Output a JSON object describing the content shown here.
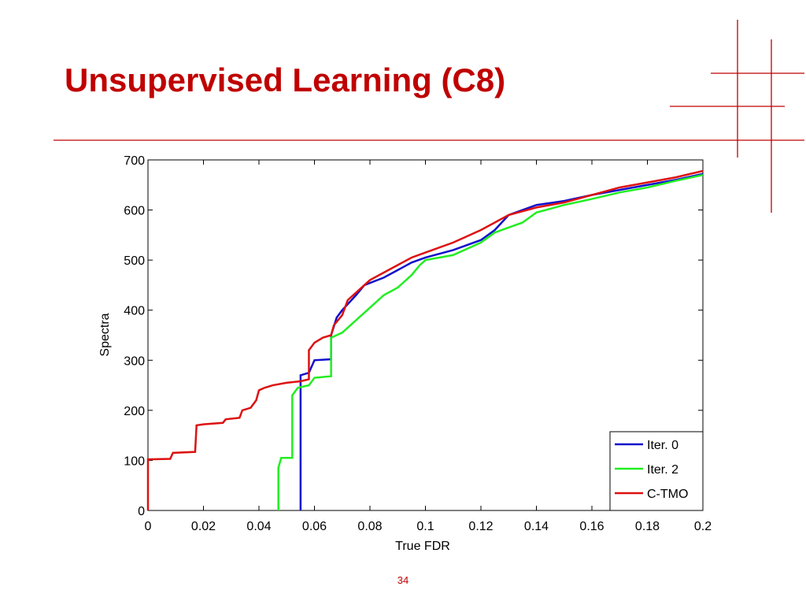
{
  "slide_title": "Unsupervised Learning (C8)",
  "page_number": "34",
  "chart_data": {
    "type": "line",
    "xlabel": "True FDR",
    "ylabel": "Spectra",
    "xlim": [
      0,
      0.2
    ],
    "ylim": [
      0,
      700
    ],
    "xticks": [
      0,
      0.02,
      0.04,
      0.06,
      0.08,
      0.1,
      0.12,
      0.14,
      0.16,
      0.18,
      0.2
    ],
    "yticks": [
      0,
      100,
      200,
      300,
      400,
      500,
      600,
      700
    ],
    "legend": "lower right",
    "series": [
      {
        "name": "Iter. 0",
        "color": "#1010cc",
        "x": [
          0.055,
          0.055,
          0.058,
          0.06,
          0.066,
          0.066,
          0.068,
          0.07,
          0.075,
          0.078,
          0.085,
          0.09,
          0.095,
          0.1,
          0.11,
          0.12,
          0.125,
          0.13,
          0.14,
          0.15,
          0.16,
          0.17,
          0.18,
          0.19,
          0.2
        ],
        "values": [
          0,
          270,
          275,
          300,
          302,
          350,
          385,
          400,
          430,
          450,
          465,
          480,
          495,
          505,
          520,
          540,
          560,
          590,
          610,
          618,
          630,
          640,
          650,
          660,
          672
        ]
      },
      {
        "name": "Iter. 2",
        "color": "#22ee22",
        "x": [
          0.047,
          0.047,
          0.048,
          0.052,
          0.052,
          0.054,
          0.058,
          0.06,
          0.066,
          0.066,
          0.07,
          0.075,
          0.08,
          0.085,
          0.09,
          0.095,
          0.098,
          0.1,
          0.11,
          0.12,
          0.125,
          0.13,
          0.135,
          0.14,
          0.15,
          0.16,
          0.17,
          0.18,
          0.19,
          0.2
        ],
        "values": [
          0,
          85,
          105,
          105,
          230,
          245,
          250,
          265,
          268,
          345,
          355,
          380,
          405,
          430,
          445,
          470,
          490,
          500,
          510,
          535,
          555,
          565,
          575,
          595,
          610,
          622,
          635,
          645,
          658,
          670
        ]
      },
      {
        "name": "C-TMO",
        "color": "#dd1111",
        "x": [
          0,
          0,
          0.008,
          0.009,
          0.017,
          0.0175,
          0.02,
          0.027,
          0.028,
          0.033,
          0.034,
          0.037,
          0.039,
          0.04,
          0.042,
          0.045,
          0.05,
          0.055,
          0.058,
          0.058,
          0.06,
          0.063,
          0.066,
          0.067,
          0.07,
          0.072,
          0.075,
          0.08,
          0.085,
          0.09,
          0.095,
          0.1,
          0.11,
          0.12,
          0.125,
          0.13,
          0.14,
          0.15,
          0.16,
          0.17,
          0.18,
          0.19,
          0.2
        ],
        "values": [
          0,
          102,
          103,
          115,
          117,
          170,
          172,
          175,
          182,
          185,
          200,
          205,
          220,
          240,
          245,
          250,
          255,
          258,
          262,
          320,
          335,
          345,
          350,
          370,
          390,
          420,
          435,
          460,
          475,
          490,
          505,
          515,
          535,
          560,
          575,
          590,
          605,
          615,
          630,
          645,
          655,
          665,
          678
        ]
      }
    ]
  }
}
